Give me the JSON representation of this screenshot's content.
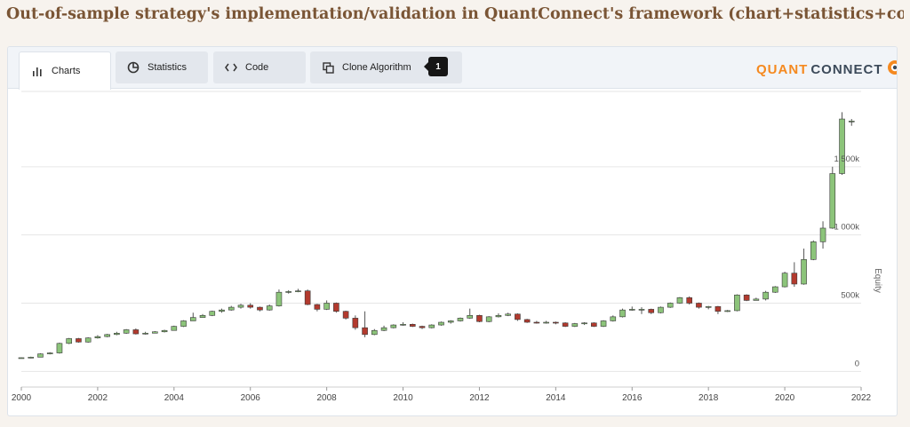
{
  "heading": "Out-of-sample strategy's implementation/validation in QuantConnect's framework (chart+statistics+code)",
  "tabs": [
    {
      "label": "Charts",
      "icon": "bar-chart-icon",
      "active": true
    },
    {
      "label": "Statistics",
      "icon": "pie-chart-icon",
      "active": false
    },
    {
      "label": "Code",
      "icon": "code-icon",
      "active": false
    },
    {
      "label": "Clone Algorithm",
      "icon": "clone-icon",
      "active": false
    }
  ],
  "clone_badge": "1",
  "logo": {
    "part1": "QUANT",
    "part2": "CONNECT"
  },
  "colors": {
    "up": "#8cc47a",
    "down": "#b33a2e",
    "wick": "#555555",
    "brand_orange": "#f5891f"
  },
  "chart_data": {
    "type": "candlestick",
    "ylabel": "Equity",
    "x_ticks": [
      "2000",
      "2002",
      "2004",
      "2006",
      "2008",
      "2010",
      "2012",
      "2014",
      "2016",
      "2018",
      "2020",
      "2022"
    ],
    "y_ticks": [
      {
        "value": 0,
        "label": "0"
      },
      {
        "value": 500000,
        "label": "500k"
      },
      {
        "value": 1000000,
        "label": "1 000k"
      },
      {
        "value": 1500000,
        "label": "1 500k"
      }
    ],
    "xlim": [
      2000,
      2022
    ],
    "ylim": [
      -50000,
      2000000
    ],
    "candles": [
      [
        2000.0,
        100000,
        100000,
        96000,
        102000
      ],
      [
        2000.25,
        100000,
        104000,
        96000,
        108000
      ],
      [
        2000.5,
        104000,
        128000,
        104000,
        132000
      ],
      [
        2000.75,
        128000,
        135000,
        124000,
        140000
      ],
      [
        2001.0,
        135000,
        205000,
        130000,
        210000
      ],
      [
        2001.25,
        205000,
        240000,
        200000,
        245000
      ],
      [
        2001.5,
        240000,
        215000,
        210000,
        245000
      ],
      [
        2001.75,
        215000,
        245000,
        210000,
        250000
      ],
      [
        2002.0,
        245000,
        255000,
        240000,
        265000
      ],
      [
        2002.25,
        255000,
        270000,
        250000,
        275000
      ],
      [
        2002.5,
        270000,
        280000,
        265000,
        290000
      ],
      [
        2002.75,
        280000,
        305000,
        275000,
        310000
      ],
      [
        2003.0,
        305000,
        275000,
        270000,
        315000
      ],
      [
        2003.25,
        275000,
        280000,
        270000,
        290000
      ],
      [
        2003.5,
        280000,
        290000,
        280000,
        295000
      ],
      [
        2003.75,
        290000,
        300000,
        285000,
        305000
      ],
      [
        2004.0,
        300000,
        330000,
        300000,
        335000
      ],
      [
        2004.25,
        330000,
        370000,
        325000,
        375000
      ],
      [
        2004.5,
        370000,
        395000,
        370000,
        430000
      ],
      [
        2004.75,
        395000,
        410000,
        395000,
        420000
      ],
      [
        2005.0,
        410000,
        440000,
        405000,
        445000
      ],
      [
        2005.25,
        440000,
        450000,
        430000,
        460000
      ],
      [
        2005.5,
        450000,
        470000,
        445000,
        480000
      ],
      [
        2005.75,
        470000,
        485000,
        460000,
        495000
      ],
      [
        2006.0,
        485000,
        470000,
        460000,
        500000
      ],
      [
        2006.25,
        470000,
        450000,
        440000,
        475000
      ],
      [
        2006.5,
        450000,
        480000,
        445000,
        490000
      ],
      [
        2006.75,
        480000,
        580000,
        475000,
        600000
      ],
      [
        2007.0,
        580000,
        585000,
        570000,
        595000
      ],
      [
        2007.25,
        585000,
        590000,
        580000,
        605000
      ],
      [
        2007.5,
        590000,
        490000,
        485000,
        600000
      ],
      [
        2007.75,
        490000,
        455000,
        440000,
        495000
      ],
      [
        2008.0,
        455000,
        500000,
        450000,
        520000
      ],
      [
        2008.25,
        500000,
        440000,
        430000,
        505000
      ],
      [
        2008.5,
        440000,
        390000,
        380000,
        445000
      ],
      [
        2008.75,
        390000,
        320000,
        305000,
        410000
      ],
      [
        2009.0,
        320000,
        270000,
        250000,
        440000
      ],
      [
        2009.25,
        270000,
        300000,
        265000,
        310000
      ],
      [
        2009.5,
        300000,
        320000,
        295000,
        335000
      ],
      [
        2009.75,
        320000,
        340000,
        315000,
        345000
      ],
      [
        2010.0,
        340000,
        345000,
        335000,
        360000
      ],
      [
        2010.25,
        345000,
        330000,
        325000,
        350000
      ],
      [
        2010.5,
        330000,
        320000,
        310000,
        335000
      ],
      [
        2010.75,
        320000,
        340000,
        315000,
        345000
      ],
      [
        2011.0,
        340000,
        360000,
        335000,
        365000
      ],
      [
        2011.25,
        360000,
        370000,
        350000,
        375000
      ],
      [
        2011.5,
        370000,
        390000,
        365000,
        395000
      ],
      [
        2011.75,
        390000,
        410000,
        385000,
        460000
      ],
      [
        2012.0,
        410000,
        365000,
        360000,
        415000
      ],
      [
        2012.25,
        365000,
        400000,
        360000,
        405000
      ],
      [
        2012.5,
        400000,
        410000,
        395000,
        425000
      ],
      [
        2012.75,
        410000,
        420000,
        405000,
        430000
      ],
      [
        2013.0,
        420000,
        380000,
        370000,
        425000
      ],
      [
        2013.25,
        380000,
        360000,
        355000,
        385000
      ],
      [
        2013.5,
        360000,
        355000,
        350000,
        370000
      ],
      [
        2013.75,
        355000,
        360000,
        350000,
        370000
      ],
      [
        2014.0,
        360000,
        355000,
        345000,
        365000
      ],
      [
        2014.25,
        355000,
        330000,
        325000,
        360000
      ],
      [
        2014.5,
        330000,
        350000,
        325000,
        355000
      ],
      [
        2014.75,
        350000,
        355000,
        340000,
        360000
      ],
      [
        2015.0,
        355000,
        330000,
        325000,
        360000
      ],
      [
        2015.25,
        330000,
        370000,
        325000,
        375000
      ],
      [
        2015.5,
        370000,
        400000,
        365000,
        410000
      ],
      [
        2015.75,
        400000,
        450000,
        395000,
        460000
      ],
      [
        2016.0,
        450000,
        455000,
        445000,
        475000
      ],
      [
        2016.25,
        455000,
        455000,
        420000,
        470000
      ],
      [
        2016.5,
        455000,
        430000,
        420000,
        460000
      ],
      [
        2016.75,
        430000,
        470000,
        425000,
        475000
      ],
      [
        2017.0,
        470000,
        500000,
        465000,
        505000
      ],
      [
        2017.25,
        500000,
        540000,
        495000,
        545000
      ],
      [
        2017.5,
        540000,
        500000,
        490000,
        550000
      ],
      [
        2017.75,
        500000,
        470000,
        460000,
        505000
      ],
      [
        2018.0,
        470000,
        475000,
        455000,
        480000
      ],
      [
        2018.25,
        475000,
        440000,
        420000,
        480000
      ],
      [
        2018.5,
        440000,
        445000,
        435000,
        450000
      ],
      [
        2018.75,
        445000,
        560000,
        440000,
        565000
      ],
      [
        2019.0,
        560000,
        520000,
        515000,
        565000
      ],
      [
        2019.25,
        520000,
        530000,
        520000,
        540000
      ],
      [
        2019.5,
        530000,
        580000,
        520000,
        590000
      ],
      [
        2019.75,
        580000,
        620000,
        575000,
        625000
      ],
      [
        2020.0,
        620000,
        720000,
        615000,
        730000
      ],
      [
        2020.25,
        720000,
        640000,
        620000,
        800000
      ],
      [
        2020.5,
        640000,
        820000,
        635000,
        900000
      ],
      [
        2020.75,
        820000,
        950000,
        815000,
        960000
      ],
      [
        2021.0,
        950000,
        1050000,
        900000,
        1100000
      ],
      [
        2021.25,
        1050000,
        1450000,
        1045000,
        1500000
      ],
      [
        2021.5,
        1450000,
        1850000,
        1440000,
        1900000
      ],
      [
        2021.75,
        1830000,
        1835000,
        1800000,
        1850000
      ]
    ]
  }
}
